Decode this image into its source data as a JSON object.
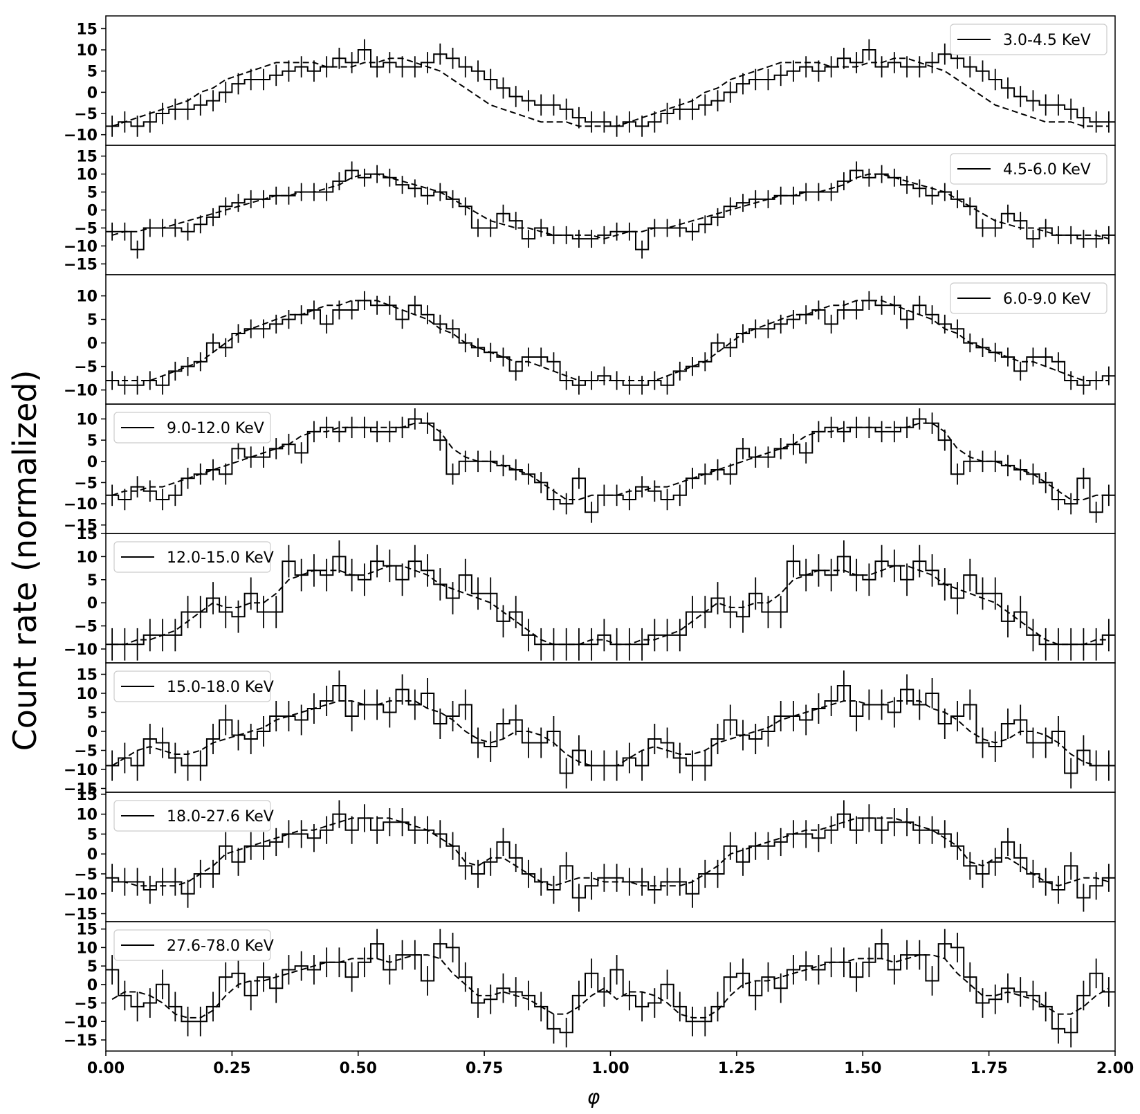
{
  "chart_data": {
    "type": "line",
    "ylabel": "Count rate (normalized)",
    "xlabel": "φ",
    "xlim": [
      0,
      2
    ],
    "xticks": [
      0.0,
      0.25,
      0.5,
      0.75,
      1.0,
      1.25,
      1.5,
      1.75,
      2.0
    ],
    "xtick_labels": [
      "0.00",
      "0.25",
      "0.50",
      "0.75",
      "1.00",
      "1.25",
      "1.50",
      "1.75",
      "2.00"
    ],
    "bins_per_cycle": 40,
    "line_color": "#000000",
    "panels": [
      {
        "name": "3.0-4.5 KeV",
        "legend_loc": "upper right",
        "ylim": [
          -12.5,
          18
        ],
        "yticks": [
          -10,
          -5,
          0,
          5,
          10,
          15
        ],
        "values": [
          -8,
          -7,
          -8,
          -7,
          -5,
          -4,
          -4,
          -3,
          -2,
          0,
          2,
          3,
          3,
          4,
          5,
          6,
          5,
          6,
          8,
          7,
          10,
          6,
          7,
          6,
          6,
          7,
          9,
          8,
          6,
          5,
          3,
          1,
          -1,
          -2,
          -3,
          -3,
          -4,
          -6,
          -7,
          -7
        ],
        "errors": [
          2.5,
          2.5,
          2.5,
          2.5,
          2.5,
          2.5,
          2.5,
          2.5,
          2.5,
          2.5,
          2.5,
          2.5,
          2.5,
          2.5,
          2.5,
          2.5,
          2.5,
          2.5,
          2.5,
          2.5,
          2.5,
          2.5,
          2.5,
          2.5,
          2.5,
          2.5,
          2.5,
          2.5,
          2.5,
          2.5,
          2.5,
          2.5,
          2.5,
          2.5,
          2.5,
          2.5,
          2.5,
          2.5,
          2.5,
          2.5
        ],
        "model": [
          -8,
          -7,
          -6,
          -5,
          -4,
          -3,
          -2,
          0,
          1,
          3,
          4,
          5,
          6,
          7,
          7,
          7,
          7,
          6,
          6,
          6,
          7,
          7,
          8,
          8,
          7,
          6,
          5,
          3,
          1,
          -1,
          -3,
          -4,
          -5,
          -6,
          -7,
          -7,
          -7,
          -8,
          -8,
          -8
        ]
      },
      {
        "name": "4.5-6.0 KeV",
        "legend_loc": "upper right",
        "ylim": [
          -18,
          18
        ],
        "yticks": [
          -15,
          -10,
          -5,
          0,
          5,
          10,
          15
        ],
        "values": [
          -6,
          -6,
          -11,
          -5,
          -5,
          -5,
          -6,
          -4,
          -2,
          1,
          2,
          3,
          3,
          4,
          4,
          5,
          5,
          5,
          8,
          11,
          9,
          10,
          9,
          7,
          6,
          4,
          5,
          3,
          1,
          -5,
          -5,
          -1,
          -3,
          -8,
          -5,
          -7,
          -7,
          -8,
          -8,
          -7
        ],
        "errors": [
          2.5,
          2.5,
          2.5,
          2.5,
          2.5,
          2.5,
          2.5,
          2.5,
          2.5,
          2.5,
          2.5,
          2.5,
          2.5,
          2.5,
          2.5,
          2.5,
          2.5,
          2.5,
          2.5,
          2.5,
          2.5,
          2.5,
          2.5,
          2.5,
          2.5,
          2.5,
          2.5,
          2.5,
          2.5,
          2.5,
          2.5,
          2.5,
          2.5,
          2.5,
          2.5,
          2.5,
          2.5,
          2.5,
          2.5,
          2.5
        ],
        "model": [
          -7,
          -6,
          -6,
          -5,
          -5,
          -4,
          -3,
          -2,
          -1,
          0,
          1,
          2,
          3,
          4,
          4,
          5,
          5,
          6,
          7,
          9,
          10,
          10,
          9,
          8,
          7,
          6,
          5,
          3,
          1,
          -1,
          -3,
          -4,
          -5,
          -5,
          -6,
          -7,
          -7,
          -7,
          -7,
          -8
        ]
      },
      {
        "name": "6.0-9.0 KeV",
        "legend_loc": "upper right",
        "ylim": [
          -13,
          14.5
        ],
        "yticks": [
          -10,
          -5,
          0,
          5,
          10
        ],
        "values": [
          -8,
          -9,
          -9,
          -8,
          -9,
          -6,
          -5,
          -4,
          0,
          -1,
          2,
          3,
          3,
          4,
          5,
          6,
          7,
          4,
          7,
          7,
          9,
          8,
          8,
          5,
          8,
          6,
          4,
          3,
          0,
          -1,
          -2,
          -3,
          -6,
          -3,
          -3,
          -4,
          -8,
          -9,
          -8,
          -7
        ],
        "errors": [
          2,
          2,
          2,
          2,
          2,
          2,
          2,
          2,
          2,
          2,
          2,
          2,
          2,
          2,
          2,
          2,
          2,
          2,
          2,
          2,
          2,
          2,
          2,
          2,
          2,
          2,
          2,
          2,
          2,
          2,
          2,
          2,
          2,
          2,
          2,
          2,
          2,
          2,
          2,
          2
        ],
        "model": [
          -8,
          -8,
          -8,
          -8,
          -7,
          -6,
          -5,
          -4,
          -2,
          0,
          2,
          3,
          4,
          5,
          6,
          6,
          7,
          8,
          8,
          9,
          9,
          9,
          8,
          7,
          6,
          5,
          3,
          2,
          0,
          -1,
          -2,
          -3,
          -4,
          -4,
          -5,
          -6,
          -7,
          -8,
          -8,
          -8
        ]
      },
      {
        "name": "9.0-12.0 KeV",
        "legend_loc": "upper left",
        "ylim": [
          -17,
          13.5
        ],
        "yticks": [
          -15,
          -10,
          -5,
          0,
          5,
          10
        ],
        "values": [
          -8,
          -9,
          -6,
          -7,
          -9,
          -8,
          -4,
          -3,
          -2,
          -3,
          3,
          1,
          1,
          3,
          4,
          2,
          7,
          8,
          7,
          8,
          8,
          7,
          7,
          8,
          10,
          9,
          5,
          -3,
          0,
          0,
          0,
          -1,
          -2,
          -3,
          -5,
          -9,
          -10,
          -4,
          -12,
          -8
        ],
        "errors": [
          2.5,
          2.5,
          2.5,
          2.5,
          2.5,
          2.5,
          2.5,
          2.5,
          2.5,
          2.5,
          2.5,
          2.5,
          2.5,
          2.5,
          2.5,
          2.5,
          2.5,
          2.5,
          2.5,
          2.5,
          2.5,
          2.5,
          2.5,
          2.5,
          2.5,
          2.5,
          2.5,
          2.5,
          2.5,
          2.5,
          2.5,
          2.5,
          2.5,
          2.5,
          2.5,
          2.5,
          2.5,
          2.5,
          2.5,
          2.5
        ],
        "model": [
          -8,
          -7,
          -7,
          -6,
          -6,
          -5,
          -4,
          -3,
          -2,
          -1,
          0,
          1,
          2,
          3,
          4,
          6,
          7,
          7,
          8,
          8,
          8,
          8,
          8,
          8,
          9,
          9,
          7,
          3,
          1,
          0,
          0,
          -1,
          -2,
          -3,
          -5,
          -7,
          -9,
          -9,
          -8,
          -8
        ]
      },
      {
        "name": "12.0-15.0 KeV",
        "legend_loc": "upper left",
        "ylim": [
          -13,
          15
        ],
        "yticks": [
          -10,
          -5,
          0,
          5,
          10,
          15
        ],
        "values": [
          -9,
          -9,
          -9,
          -7,
          -7,
          -7,
          -2,
          -2,
          1,
          -2,
          -3,
          2,
          -2,
          -2,
          9,
          6,
          7,
          6,
          10,
          6,
          5,
          9,
          8,
          5,
          9,
          7,
          4,
          1,
          6,
          2,
          2,
          -4,
          -2,
          -7,
          -9,
          -9,
          -9,
          -9,
          -9,
          -7
        ],
        "errors": [
          3.5,
          3.5,
          3.5,
          3.5,
          3.5,
          3.5,
          3.5,
          3.5,
          3.5,
          3.5,
          3.5,
          3.5,
          3.5,
          3.5,
          3.5,
          3.5,
          3.5,
          3.5,
          3.5,
          3.5,
          3.5,
          3.5,
          3.5,
          3.5,
          3.5,
          3.5,
          3.5,
          3.5,
          3.5,
          3.5,
          3.5,
          3.5,
          3.5,
          3.5,
          3.5,
          3.5,
          3.5,
          3.5,
          3.5,
          3.5
        ],
        "model": [
          -9,
          -9,
          -8,
          -8,
          -7,
          -6,
          -4,
          -2,
          0,
          -1,
          -1,
          0,
          0,
          2,
          5,
          6,
          7,
          7,
          7,
          6,
          6,
          7,
          8,
          8,
          7,
          6,
          4,
          3,
          2,
          1,
          0,
          -2,
          -4,
          -6,
          -8,
          -9,
          -9,
          -9,
          -8,
          -8
        ]
      },
      {
        "name": "15.0-18.0 KeV",
        "legend_loc": "upper left",
        "ylim": [
          -16,
          18
        ],
        "yticks": [
          -15,
          -10,
          -5,
          0,
          5,
          10,
          15
        ],
        "values": [
          -9,
          -7,
          -9,
          -2,
          -3,
          -7,
          -9,
          -9,
          -2,
          3,
          -1,
          -2,
          0,
          4,
          4,
          3,
          6,
          8,
          12,
          4,
          7,
          7,
          5,
          11,
          7,
          10,
          2,
          4,
          7,
          -3,
          -4,
          2,
          3,
          -3,
          -3,
          0,
          -11,
          -5,
          -9,
          -9
        ],
        "errors": [
          4,
          4,
          4,
          4,
          4,
          4,
          4,
          4,
          4,
          4,
          4,
          4,
          4,
          4,
          4,
          4,
          4,
          4,
          4,
          4,
          4,
          4,
          4,
          4,
          4,
          4,
          4,
          4,
          4,
          4,
          4,
          4,
          4,
          4,
          4,
          4,
          4,
          4,
          4,
          4
        ],
        "model": [
          -9,
          -7,
          -5,
          -4,
          -5,
          -6,
          -6,
          -5,
          -3,
          -2,
          -1,
          0,
          1,
          3,
          4,
          5,
          6,
          7,
          8,
          8,
          7,
          7,
          8,
          8,
          8,
          6,
          5,
          3,
          0,
          -2,
          -3,
          -2,
          0,
          0,
          -1,
          -3,
          -6,
          -8,
          -9,
          -9
        ]
      },
      {
        "name": "18.0-27.6 KeV",
        "legend_loc": "upper left",
        "ylim": [
          -17,
          15.5
        ],
        "yticks": [
          -15,
          -10,
          -5,
          0,
          5,
          10,
          15
        ],
        "values": [
          -6,
          -7,
          -7,
          -9,
          -7,
          -7,
          -10,
          -5,
          -5,
          2,
          -2,
          2,
          2,
          3,
          5,
          5,
          4,
          6,
          10,
          6,
          9,
          6,
          8,
          8,
          6,
          6,
          5,
          2,
          -3,
          -5,
          -2,
          3,
          -1,
          -5,
          -7,
          -9,
          -3,
          -11,
          -8,
          -6
        ],
        "errors": [
          3.5,
          3.5,
          3.5,
          3.5,
          3.5,
          3.5,
          3.5,
          3.5,
          3.5,
          3.5,
          3.5,
          3.5,
          3.5,
          3.5,
          3.5,
          3.5,
          3.5,
          3.5,
          3.5,
          3.5,
          3.5,
          3.5,
          3.5,
          3.5,
          3.5,
          3.5,
          3.5,
          3.5,
          3.5,
          3.5,
          3.5,
          3.5,
          3.5,
          3.5,
          3.5,
          3.5,
          3.5,
          3.5,
          3.5,
          3.5
        ],
        "model": [
          -7,
          -7,
          -8,
          -8,
          -8,
          -8,
          -7,
          -5,
          -3,
          0,
          1,
          2,
          3,
          4,
          5,
          6,
          6,
          7,
          8,
          9,
          9,
          9,
          9,
          8,
          7,
          6,
          4,
          2,
          -2,
          -3,
          -1,
          -1,
          -3,
          -5,
          -7,
          -8,
          -7,
          -6,
          -6,
          -7
        ]
      },
      {
        "name": "27.6-78.0 KeV",
        "legend_loc": "upper left",
        "ylim": [
          -18,
          17
        ],
        "yticks": [
          -15,
          -10,
          -5,
          0,
          5,
          10,
          15
        ],
        "values": [
          4,
          -3,
          -6,
          -5,
          0,
          -6,
          -10,
          -10,
          -6,
          2,
          3,
          -3,
          2,
          -1,
          4,
          5,
          4,
          6,
          6,
          2,
          6,
          11,
          4,
          8,
          8,
          1,
          11,
          10,
          2,
          -5,
          -4,
          -1,
          -2,
          -3,
          -6,
          -12,
          -13,
          -3,
          3,
          -2
        ],
        "errors": [
          4,
          4,
          4,
          4,
          4,
          4,
          4,
          4,
          4,
          4,
          4,
          4,
          4,
          4,
          4,
          4,
          4,
          4,
          4,
          4,
          4,
          4,
          4,
          4,
          4,
          4,
          4,
          4,
          4,
          4,
          4,
          4,
          4,
          4,
          4,
          4,
          4,
          4,
          4,
          4
        ],
        "model": [
          -4,
          -2,
          -2,
          -3,
          -5,
          -8,
          -9,
          -9,
          -7,
          -3,
          0,
          1,
          1,
          2,
          3,
          4,
          5,
          6,
          6,
          7,
          7,
          7,
          6,
          7,
          8,
          8,
          7,
          3,
          0,
          -3,
          -3,
          -2,
          -3,
          -4,
          -6,
          -8,
          -8,
          -6,
          -3,
          -1
        ]
      }
    ]
  }
}
